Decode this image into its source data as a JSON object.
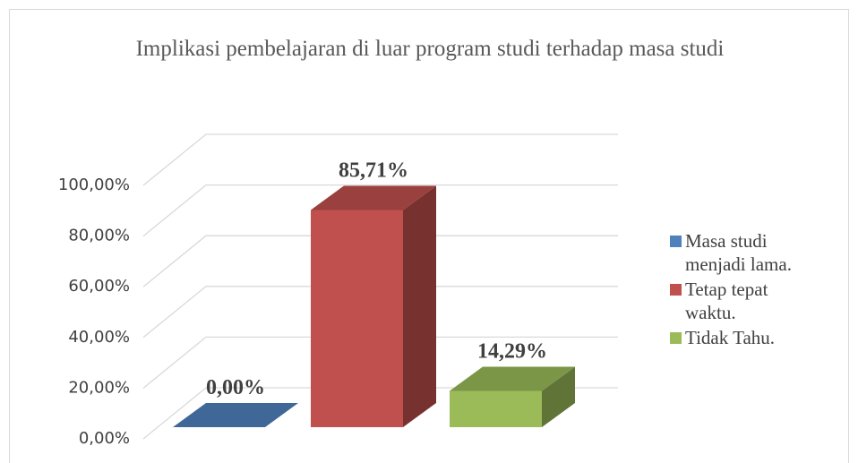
{
  "chart_data": {
    "type": "bar3d",
    "title": "Implikasi pembelajaran di luar program studi terhadap masa studi",
    "series": [
      {
        "name": "Masa studi menjadi lama.",
        "color": "#4f81bd",
        "values": [
          0
        ],
        "value_labels": [
          "0,00%"
        ]
      },
      {
        "name": "Tetap tepat waktu.",
        "color": "#c0504d",
        "values": [
          85.71
        ],
        "value_labels": [
          "85,71%"
        ]
      },
      {
        "name": "Tidak Tahu.",
        "color": "#9bbb59",
        "values": [
          14.29
        ],
        "value_labels": [
          "14,29%"
        ]
      }
    ],
    "ylim": [
      0,
      100
    ],
    "yticks": [
      {
        "value": 0,
        "label": "0,00%"
      },
      {
        "value": 20,
        "label": "20,00%"
      },
      {
        "value": 40,
        "label": "40,00%"
      },
      {
        "value": 60,
        "label": "60,00%"
      },
      {
        "value": 80,
        "label": "80,00%"
      },
      {
        "value": 100,
        "label": "100,00%"
      }
    ],
    "grid": true,
    "legend": "right"
  }
}
